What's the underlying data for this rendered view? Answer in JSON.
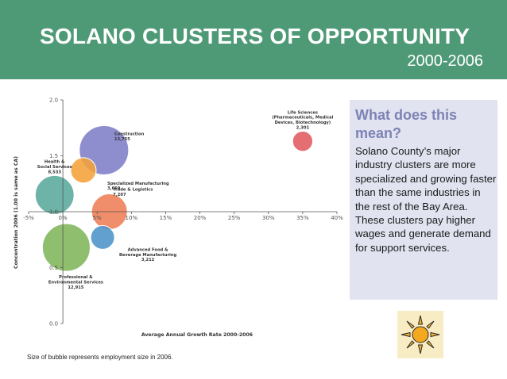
{
  "header": {
    "title": "SOLANO CLUSTERS OF OPPORTUNITY",
    "subtitle": "2000-2006",
    "color": "#4f9a76"
  },
  "chart_data": {
    "type": "scatter",
    "bubble": true,
    "xlabel": "Average Annual Growth Rate 2000-2006",
    "ylabel": "Concentration 2006 (1.00 is same as CA)",
    "x_unit": "percent",
    "xlim": [
      -5,
      40
    ],
    "ylim": [
      0,
      2.0
    ],
    "x_ticks": [
      "-5%",
      "0%",
      "5%",
      "10%",
      "15%",
      "20%",
      "25%",
      "30%",
      "35%",
      "40%"
    ],
    "y_ticks": [
      "0.0",
      "0.5",
      "1.0",
      "1.5",
      "2.0"
    ],
    "x_tick_values": [
      -5,
      0,
      5,
      10,
      15,
      20,
      25,
      30,
      35,
      40
    ],
    "y_tick_values": [
      0,
      0.5,
      1.0,
      1.5,
      2.0
    ],
    "x_axis_crosses_y": 1.0,
    "y_axis_crosses_x": 0,
    "grid": false,
    "points": [
      {
        "name": "Life Sciences (Pharmaceuticals, Medical Devices, Biotechnology)",
        "label_lines": [
          "Life Sciences",
          "(Pharmaceuticals, Medical",
          "Devices, Biotechnology)"
        ],
        "value_label": "2,301",
        "x": 35,
        "y": 1.63,
        "size": 2301,
        "color": "#e05a5e",
        "label_anchor": "middle",
        "label_side": "above"
      },
      {
        "name": "Construction",
        "label_lines": [
          "Construction"
        ],
        "value_label": "13,755",
        "x": 6,
        "y": 1.55,
        "size": 13755,
        "color": "#7e7ec8",
        "label_anchor": "start",
        "label_side": "right"
      },
      {
        "name": "Health & Social Services",
        "label_lines": [
          "Health &",
          "Social Services"
        ],
        "value_label": "8,533",
        "x": -1.2,
        "y": 1.15,
        "size": 8533,
        "color": "#5aa89c",
        "label_anchor": "middle",
        "label_side": "above"
      },
      {
        "name": "Specialized Manufacturing",
        "label_lines": [
          "Specialized Manufacturing"
        ],
        "value_label": "3,669",
        "x": 3,
        "y": 1.37,
        "size": 3669,
        "color": "#f5a23a",
        "label_anchor": "start",
        "label_side": "right"
      },
      {
        "name": "Trade & Logistics",
        "label_lines": [
          "Trade & Logistics"
        ],
        "value_label": "7,207",
        "x": 6.8,
        "y": 1.0,
        "size": 7207,
        "color": "#ee7d55",
        "label_anchor": "start",
        "label_side": "right"
      },
      {
        "name": "Advanced Food & Beverage Manufacturing",
        "label_lines": [
          "Advanced Food &",
          "Beverage Manufacturing"
        ],
        "value_label": "3,212",
        "x": 5.8,
        "y": 0.77,
        "size": 3212,
        "color": "#4b93c8",
        "label_anchor": "start",
        "label_side": "right"
      },
      {
        "name": "Professional & Environmental Services",
        "label_lines": [
          "Professional &",
          "Environmental Services"
        ],
        "value_label": "12,915",
        "x": 0.5,
        "y": 0.68,
        "size": 12915,
        "color": "#7fb55a",
        "label_anchor": "middle",
        "label_side": "below"
      }
    ]
  },
  "note": "Size of bubble represents employment size in 2006.",
  "panel": {
    "heading": "What does this mean?",
    "body1": "Solano County’s major industry clusters are more specialized and growing faster than the same industries in the rest of the Bay Area.",
    "body2": "These clusters pay higher wages and generate demand for support services.",
    "heading_color": "#7d83b4",
    "background": "#e1e3f0"
  },
  "decoration": {
    "icon": "sun-icon"
  }
}
